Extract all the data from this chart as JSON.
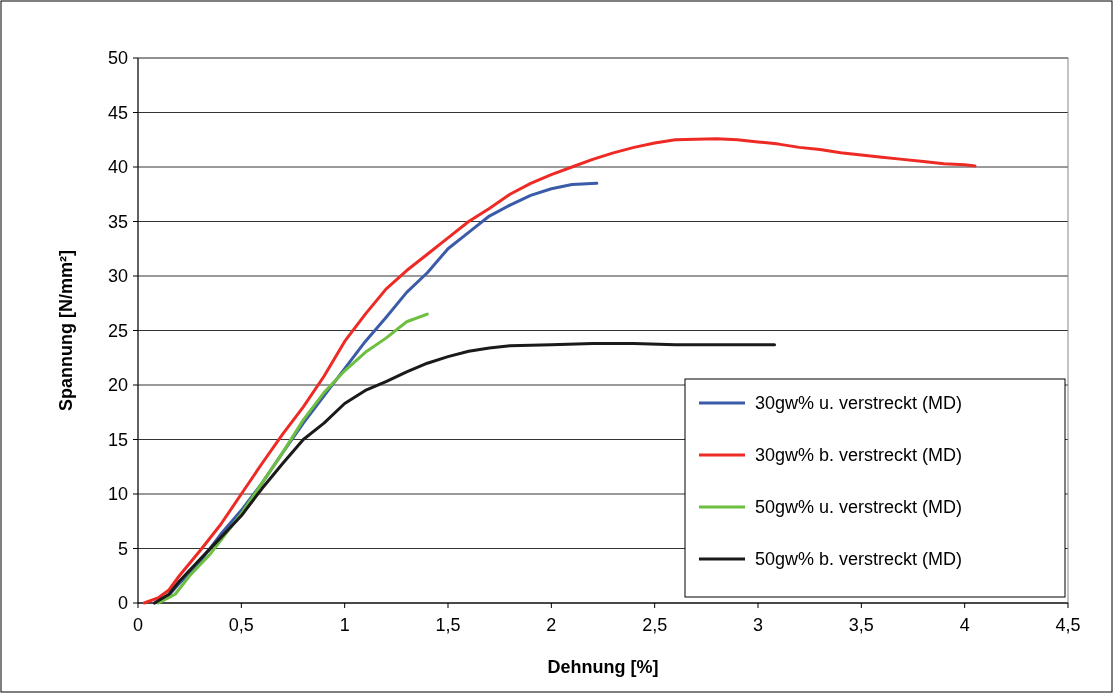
{
  "chart_data": {
    "type": "line",
    "xlabel": "Dehnung [%]",
    "ylabel": "Spannung [N/mm²]",
    "xlim": [
      0,
      4.5
    ],
    "xticks": [
      0,
      {
        "value": 0.5,
        "label": "0,5"
      },
      1,
      {
        "value": 1.5,
        "label": "1,5"
      },
      2,
      {
        "value": 2.5,
        "label": "2,5"
      },
      3,
      {
        "value": 3.5,
        "label": "3,5"
      },
      4,
      {
        "value": 4.5,
        "label": "4,5"
      }
    ],
    "ylim": [
      0,
      50
    ],
    "yticks": [
      0,
      5,
      10,
      15,
      20,
      25,
      30,
      35,
      40,
      45,
      50
    ],
    "grid": "y",
    "legend": "bottom right",
    "marker": "none",
    "line_style": "solid",
    "series": [
      {
        "name": "30gw% u. verstreckt (MD)",
        "color": "#3a5ba8",
        "x": [
          0.08,
          0.15,
          0.2,
          0.3,
          0.4,
          0.5,
          0.6,
          0.7,
          0.8,
          0.9,
          1.0,
          1.1,
          1.2,
          1.3,
          1.4,
          1.5,
          1.6,
          1.7,
          1.8,
          1.9,
          2.0,
          2.1,
          2.22
        ],
        "values": [
          0,
          0.7,
          1.8,
          3.8,
          6.3,
          8.5,
          11,
          13.8,
          16.5,
          19,
          21.5,
          24,
          26.2,
          28.5,
          30.3,
          32.5,
          34,
          35.5,
          36.5,
          37.4,
          38,
          38.4,
          38.5
        ]
      },
      {
        "name": "30gw% b. verstreckt (MD)",
        "color": "#ee2a24",
        "x": [
          0.03,
          0.1,
          0.15,
          0.2,
          0.3,
          0.4,
          0.5,
          0.6,
          0.7,
          0.8,
          0.9,
          1.0,
          1.1,
          1.2,
          1.3,
          1.4,
          1.5,
          1.6,
          1.7,
          1.8,
          1.9,
          2.0,
          2.1,
          2.2,
          2.3,
          2.4,
          2.5,
          2.6,
          2.8,
          2.9,
          3.0,
          3.1,
          3.2,
          3.3,
          3.4,
          3.5,
          3.6,
          3.7,
          3.8,
          3.9,
          4.0,
          4.05
        ],
        "values": [
          0,
          0.5,
          1.2,
          2.5,
          4.8,
          7.2,
          10,
          12.8,
          15.5,
          18,
          20.8,
          24,
          26.5,
          28.8,
          30.5,
          32,
          33.5,
          35,
          36.2,
          37.5,
          38.5,
          39.3,
          40,
          40.7,
          41.3,
          41.8,
          42.2,
          42.5,
          42.6,
          42.5,
          42.3,
          42.1,
          41.8,
          41.6,
          41.3,
          41.1,
          40.9,
          40.7,
          40.5,
          40.3,
          40.2,
          40.1
        ]
      },
      {
        "name": "50gw% u. verstreckt (MD)",
        "color": "#6cbf3f",
        "x": [
          0.1,
          0.18,
          0.25,
          0.35,
          0.5,
          0.6,
          0.7,
          0.8,
          0.9,
          1.0,
          1.1,
          1.2,
          1.3,
          1.4
        ],
        "values": [
          0,
          0.8,
          2.5,
          4.5,
          8.2,
          11,
          13.8,
          16.8,
          19.3,
          21.3,
          23,
          24.3,
          25.8,
          26.5
        ]
      },
      {
        "name": "50gw% b. verstreckt (MD)",
        "color": "#1a1a1a",
        "x": [
          0.08,
          0.15,
          0.2,
          0.3,
          0.4,
          0.5,
          0.6,
          0.7,
          0.8,
          0.9,
          1.0,
          1.1,
          1.2,
          1.3,
          1.4,
          1.5,
          1.6,
          1.7,
          1.8,
          2.0,
          2.2,
          2.4,
          2.6,
          2.8,
          3.08
        ],
        "values": [
          0,
          0.8,
          2,
          4,
          6,
          8,
          10.5,
          12.8,
          15,
          16.5,
          18.3,
          19.5,
          20.3,
          21.2,
          22,
          22.6,
          23.1,
          23.4,
          23.6,
          23.7,
          23.8,
          23.8,
          23.7,
          23.7,
          23.7
        ]
      }
    ]
  }
}
